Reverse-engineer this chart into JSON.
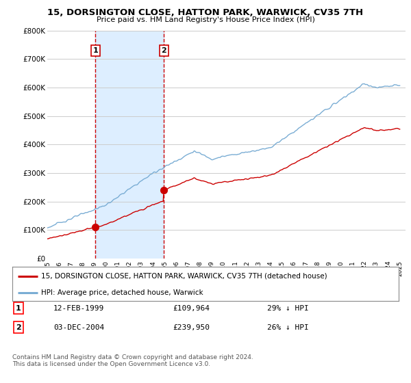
{
  "title": "15, DORSINGTON CLOSE, HATTON PARK, WARWICK, CV35 7TH",
  "subtitle": "Price paid vs. HM Land Registry's House Price Index (HPI)",
  "legend_label1": "15, DORSINGTON CLOSE, HATTON PARK, WARWICK, CV35 7TH (detached house)",
  "legend_label2": "HPI: Average price, detached house, Warwick",
  "transaction1_date": "12-FEB-1999",
  "transaction1_price": "£109,964",
  "transaction1_hpi": "29% ↓ HPI",
  "transaction2_date": "03-DEC-2004",
  "transaction2_price": "£239,950",
  "transaction2_hpi": "26% ↓ HPI",
  "footnote": "Contains HM Land Registry data © Crown copyright and database right 2024.\nThis data is licensed under the Open Government Licence v3.0.",
  "color_property": "#cc0000",
  "color_hpi": "#7aadd4",
  "color_vline": "#cc0000",
  "color_shade": "#ddeeff",
  "background_chart": "#ffffff",
  "background_fig": "#ffffff",
  "ylim": [
    0,
    800000
  ],
  "yticks": [
    0,
    100000,
    200000,
    300000,
    400000,
    500000,
    600000,
    700000,
    800000
  ],
  "ytick_labels": [
    "£0",
    "£100K",
    "£200K",
    "£300K",
    "£400K",
    "£500K",
    "£600K",
    "£700K",
    "£800K"
  ],
  "transaction1_x": 1999.1,
  "transaction1_y": 109964,
  "transaction2_x": 2004.92,
  "transaction2_y": 239950,
  "xmin": 1995,
  "xmax": 2025.5
}
